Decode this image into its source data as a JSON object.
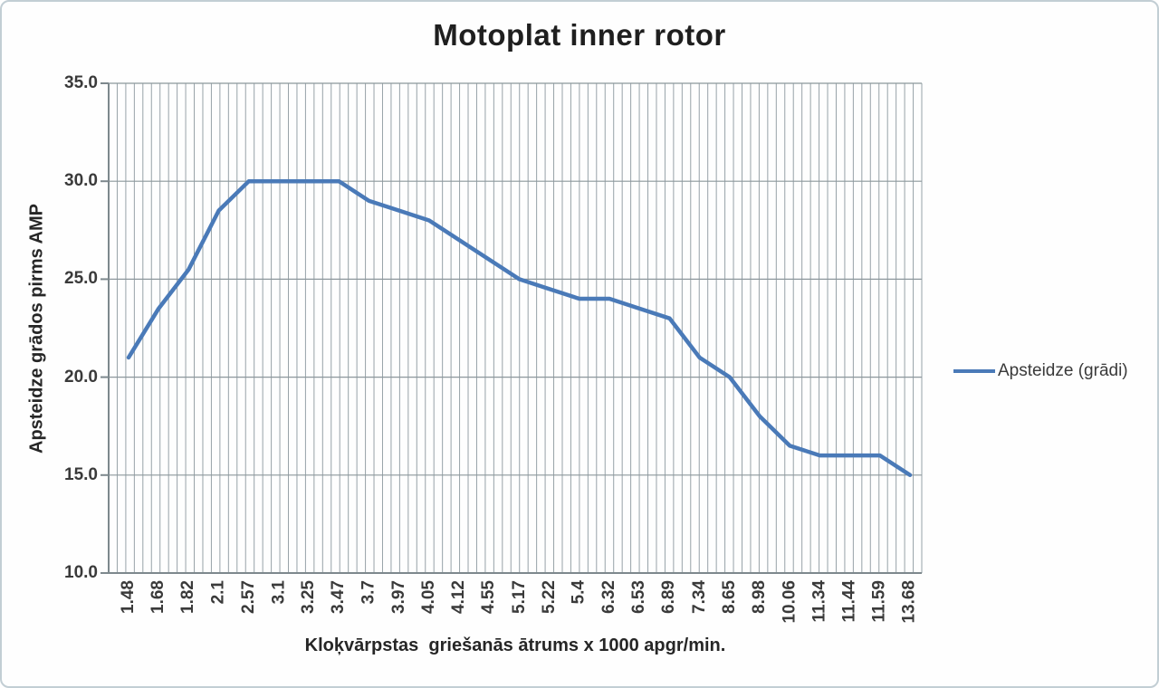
{
  "chart_data": {
    "type": "line",
    "title": "Motoplat inner rotor",
    "xlabel": "Kloķvārpstas  griešanās ātrums x 1000 apgr/min.",
    "ylabel": "Apsteidze grādos pirms AMP",
    "categories": [
      "1.48",
      "1.68",
      "1.82",
      "2.1",
      "2.57",
      "3.1",
      "3.25",
      "3.47",
      "3.7",
      "3.97",
      "4.05",
      "4.12",
      "4.55",
      "5.17",
      "5.22",
      "5.4",
      "6.32",
      "6.53",
      "6.89",
      "7.34",
      "8.65",
      "8.98",
      "10.06",
      "11.34",
      "11.44",
      "11.59",
      "13.68"
    ],
    "series": [
      {
        "name": "Apsteidze (grādi)",
        "values": [
          21,
          23.5,
          25.5,
          28.5,
          30,
          30,
          30,
          30,
          29,
          28.5,
          28,
          27,
          26,
          25,
          24.5,
          24,
          24,
          23.5,
          23,
          21,
          20,
          18,
          16.5,
          16,
          16,
          16,
          15
        ]
      }
    ],
    "ylim": [
      10.0,
      35.0
    ],
    "ytick_step": 5.0,
    "yticks": [
      "35.0",
      "30.0",
      "25.0",
      "20.0",
      "15.0",
      "10.0"
    ],
    "grid": {
      "horizontal_major": true,
      "vertical_minor_dense": true
    },
    "legend_position": "right",
    "colors": {
      "line": "#4a7ab8",
      "minor_gridline": "#97a2a8",
      "major_gridline": "#8c979c",
      "axis": "#7d888d",
      "frame": "#c2ced4",
      "tick_text": "#3a3a3a",
      "title_text": "#1f1f1f"
    }
  }
}
